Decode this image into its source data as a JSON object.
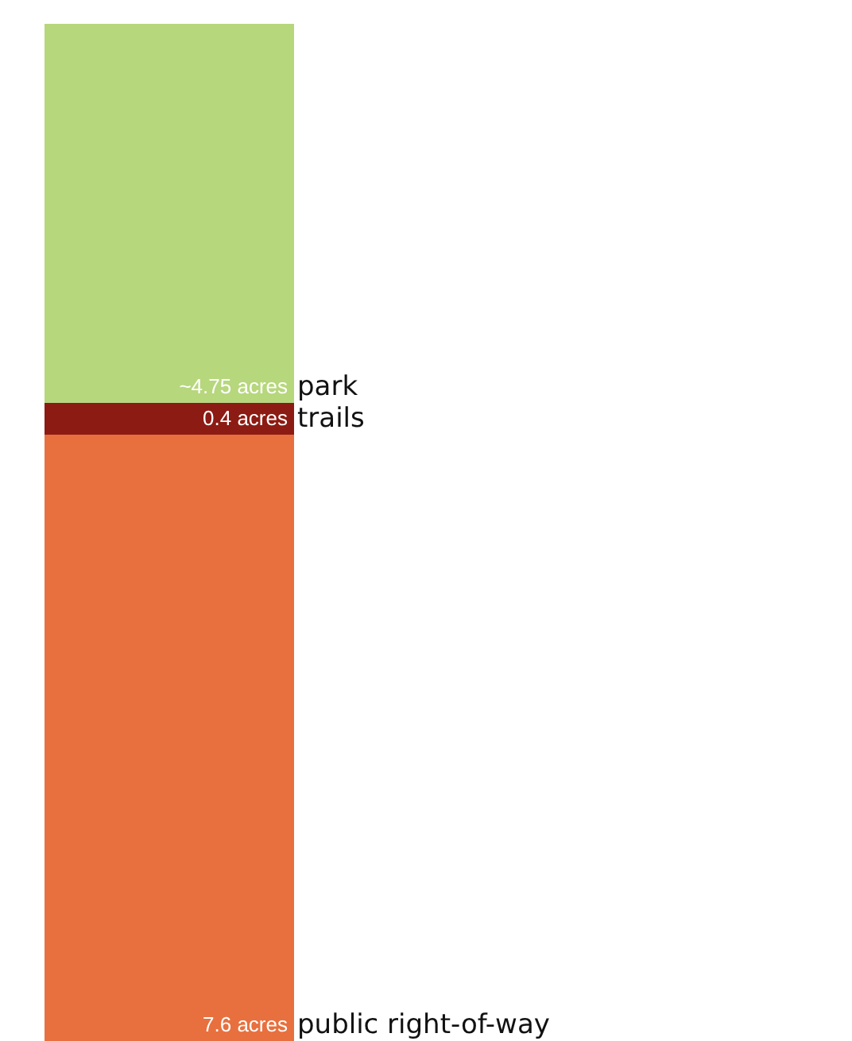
{
  "chart_data": {
    "type": "bar",
    "stacked": true,
    "categories": [
      null
    ],
    "series": [
      {
        "name": "public right-of-way",
        "color": "#e8703e",
        "values": [
          7.6
        ],
        "value_labels": [
          "7.6 acres"
        ]
      },
      {
        "name": "trails",
        "color": "#8c1b13",
        "values": [
          0.4
        ],
        "value_labels": [
          "0.4 acres"
        ]
      },
      {
        "name": "park",
        "color": "#b6d77c",
        "values": [
          4.75
        ],
        "value_labels": [
          "~4.75 acres"
        ]
      }
    ]
  }
}
